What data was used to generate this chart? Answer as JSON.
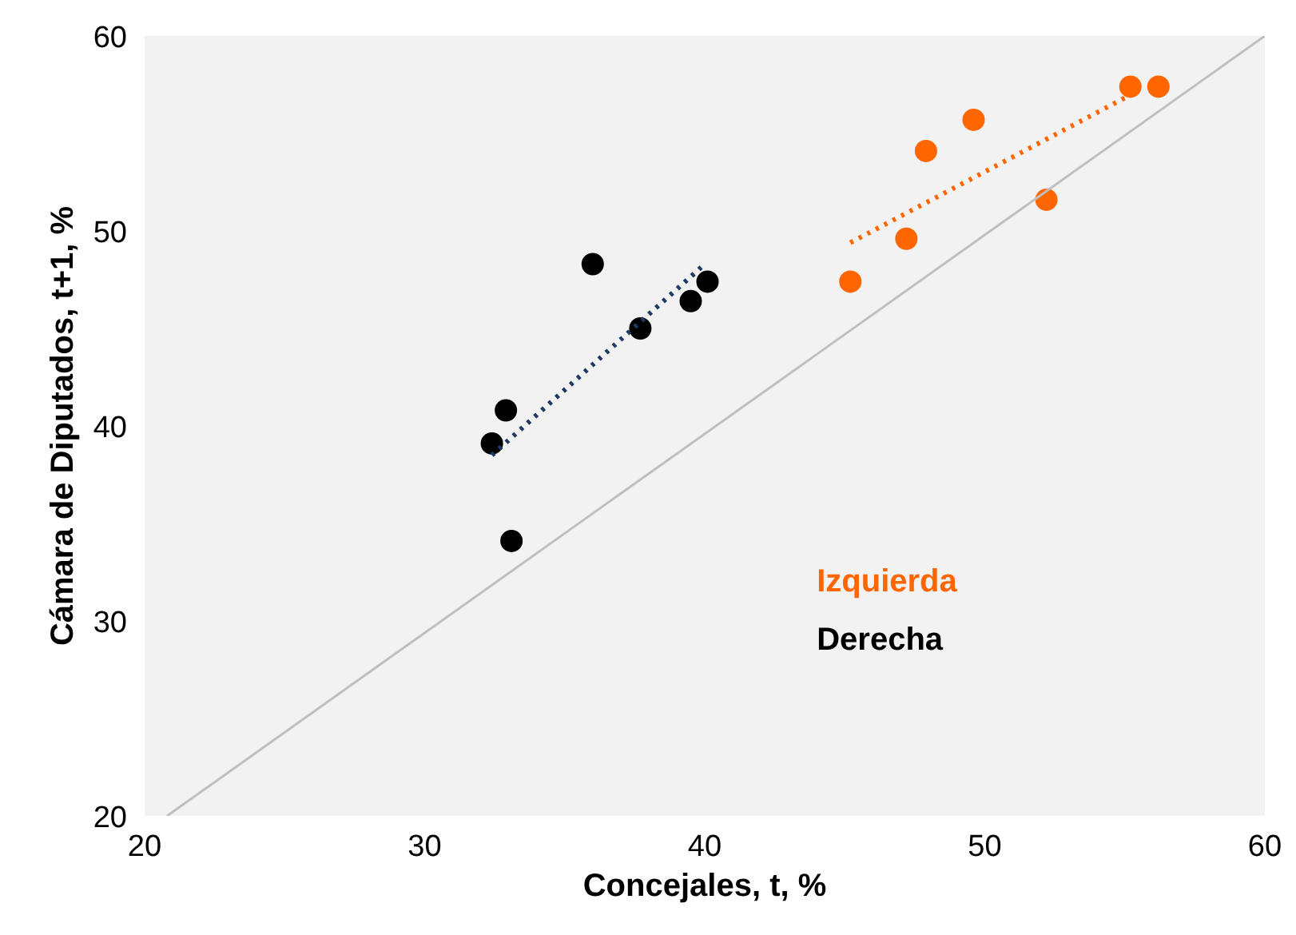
{
  "chart_data": {
    "type": "scatter",
    "xlabel": "Concejales, t, %",
    "ylabel": "Cámara de Diputados, t+1, %",
    "xlim": [
      20,
      60
    ],
    "ylim": [
      20,
      60
    ],
    "xticks": [
      20,
      30,
      40,
      50,
      60
    ],
    "yticks": [
      20,
      30,
      40,
      50,
      60
    ],
    "grid": false,
    "legend": "bottom right",
    "series": [
      {
        "name": "Izquierda",
        "marker": "circle",
        "color": "#ff6600",
        "x": [
          45.2,
          47.2,
          47.9,
          49.6,
          52.2,
          55.2,
          56.2
        ],
        "values": [
          47.4,
          49.6,
          54.1,
          55.7,
          51.6,
          57.4,
          57.4
        ]
      },
      {
        "name": "Derecha",
        "marker": "circle",
        "color": "#000000",
        "x": [
          32.4,
          32.9,
          33.1,
          36.0,
          37.7,
          39.5,
          40.1
        ],
        "values": [
          39.1,
          40.8,
          34.1,
          48.3,
          45.0,
          46.4,
          47.4
        ]
      },
      {
        "type": "line",
        "color": "#ff6600",
        "line_style": "dotted",
        "x": [
          45.2,
          55.1
        ],
        "values": [
          49.4,
          56.9
        ]
      },
      {
        "type": "line",
        "color": "#1f3864",
        "line_style": "dotted",
        "x": [
          32.4,
          40.0
        ],
        "values": [
          38.5,
          48.3
        ]
      },
      {
        "type": "line",
        "color": "#bfbfbf",
        "line_style": "solid",
        "x": [
          20.8,
          60
        ],
        "values": [
          20,
          60
        ]
      }
    ]
  }
}
